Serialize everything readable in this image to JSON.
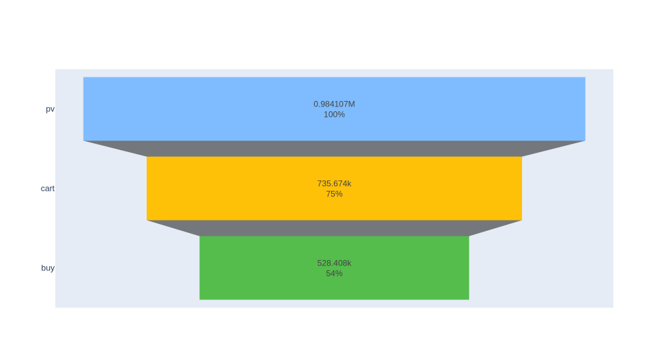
{
  "chart_data": {
    "type": "funnel",
    "categories": [
      "pv",
      "cart",
      "buy"
    ],
    "values": [
      984107,
      735674,
      528408
    ],
    "value_labels": [
      "0.984107M",
      "735.674k",
      "528.408k"
    ],
    "percent_labels": [
      "100%",
      "75%",
      "54%"
    ],
    "colors": [
      "#7fbcff",
      "#ffc107",
      "#55bd4c"
    ],
    "connector_color": "#74777b",
    "plot_background": "#e5ecf6",
    "grid": false,
    "legend": "none"
  }
}
